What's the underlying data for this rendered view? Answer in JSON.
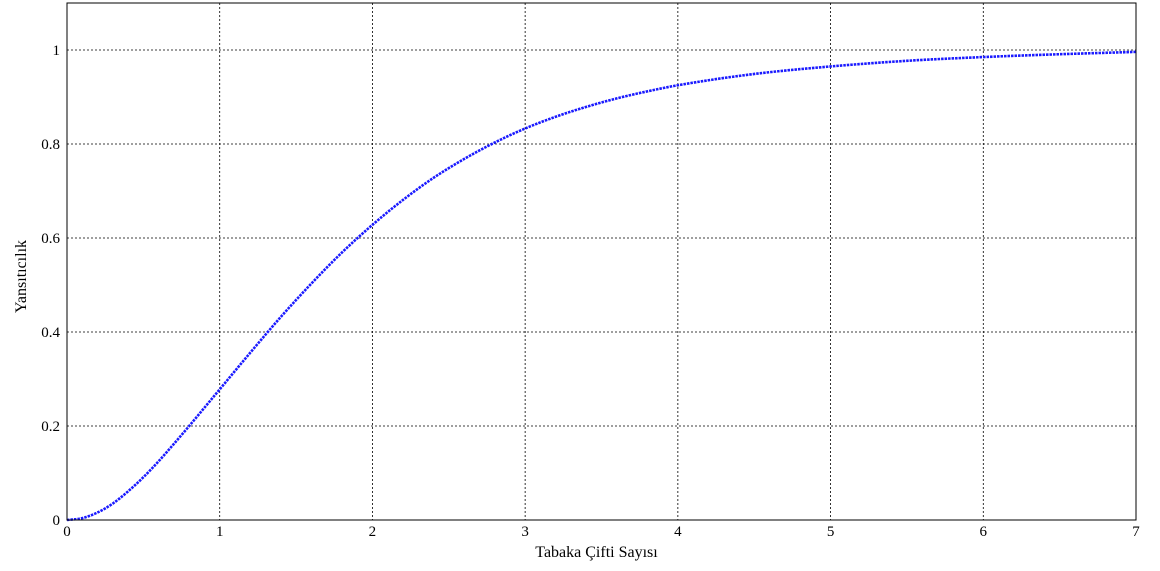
{
  "chart_data": {
    "type": "line",
    "title": "",
    "xlabel": "Tabaka Çifti Sayısı",
    "ylabel": "Yansıtıcılık",
    "xlim": [
      0,
      7
    ],
    "ylim": [
      0,
      1.1
    ],
    "xticks": [
      0,
      1,
      2,
      3,
      4,
      5,
      6,
      7
    ],
    "xtick_labels": [
      "0",
      "1",
      "2",
      "3",
      "4",
      "5",
      "6",
      "7"
    ],
    "yticks": [
      0,
      0.2,
      0.4,
      0.6,
      0.8,
      1
    ],
    "ytick_labels": [
      "0",
      "0.2",
      "0.4",
      "0.6",
      "0.8",
      "1"
    ],
    "grid": true,
    "series_color": "#1a1aff",
    "series": [
      {
        "x": [
          0,
          0.1,
          0.2,
          0.3,
          0.4,
          0.5,
          0.6,
          0.7,
          0.8,
          0.9,
          1.0,
          1.2,
          1.4,
          1.6,
          1.8,
          2.0,
          2.2,
          2.4,
          2.6,
          2.8,
          3.0,
          3.2,
          3.4,
          3.6,
          3.8,
          4.0,
          4.5,
          5.0,
          5.5,
          6.0,
          6.5,
          7.0
        ],
        "y": [
          0.0,
          0.004,
          0.016,
          0.035,
          0.061,
          0.091,
          0.125,
          0.162,
          0.2,
          0.239,
          0.278,
          0.356,
          0.432,
          0.503,
          0.569,
          0.628,
          0.681,
          0.728,
          0.768,
          0.803,
          0.833,
          0.858,
          0.879,
          0.897,
          0.912,
          0.925,
          0.949,
          0.965,
          0.977,
          0.985,
          0.991,
          0.996
        ]
      }
    ]
  }
}
